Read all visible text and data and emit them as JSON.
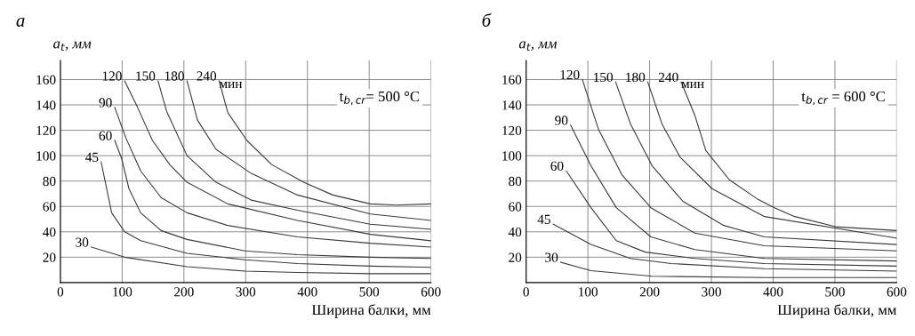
{
  "chart_data": [
    {
      "type": "line",
      "title": "а",
      "xlabel": "Ширина балки, мм",
      "ylabel": "a$_{t}$, мм",
      "xlim": [
        0,
        600
      ],
      "ylim": [
        0,
        175
      ],
      "xticks": [
        0,
        100,
        200,
        300,
        400,
        500,
        600
      ],
      "yticks": [
        20,
        40,
        60,
        80,
        100,
        120,
        140,
        160
      ],
      "grid": true,
      "legend": false,
      "annotations": [
        "t$_{b,cr}$= 500 °C",
        {
          "text": "мин",
          "x": 257,
          "y": 151
        }
      ],
      "series": [
        {
          "name": "30",
          "color": "#3a3a3a",
          "x": [
            50,
            104,
            205,
            299,
            384,
            502,
            600
          ],
          "values": [
            28,
            20,
            12.5,
            9,
            8,
            7,
            7
          ]
        },
        {
          "name": "45",
          "color": "#3a3a3a",
          "x": [
            66,
            83,
            104,
            130,
            205,
            299,
            384,
            502,
            600
          ],
          "values": [
            95,
            55,
            40,
            33,
            23,
            18,
            15,
            13,
            12
          ]
        },
        {
          "name": "60",
          "color": "#3a3a3a",
          "x": [
            88,
            99,
            111,
            130,
            163,
            205,
            299,
            384,
            502,
            600
          ],
          "values": [
            112,
            98,
            74,
            55,
            41,
            34,
            25,
            22,
            20,
            19
          ]
        },
        {
          "name": "90",
          "color": "#3a3a3a",
          "x": [
            88,
            106,
            130,
            163,
            205,
            271,
            384,
            502,
            600
          ],
          "values": [
            138,
            114,
            88,
            67,
            55,
            45,
            36,
            31,
            28
          ]
        },
        {
          "name": "120",
          "color": "#3a3a3a",
          "x": [
            104,
            125,
            149,
            177,
            205,
            271,
            384,
            502,
            600
          ],
          "values": [
            159,
            138,
            112,
            93,
            79,
            62,
            49,
            38,
            33
          ]
        },
        {
          "name": "150",
          "color": "#3a3a3a",
          "x": [
            158,
            172,
            205,
            252,
            309,
            384,
            502,
            600
          ],
          "values": [
            159,
            135,
            100,
            79,
            65,
            57,
            46,
            42
          ]
        },
        {
          "name": "180",
          "color": "#3a3a3a",
          "x": [
            205,
            222,
            252,
            309,
            384,
            502,
            600
          ],
          "values": [
            159,
            128,
            105,
            86,
            69,
            54,
            49
          ]
        },
        {
          "name": "240",
          "color": "#3a3a3a",
          "x": [
            257,
            271,
            302,
            342,
            394,
            441,
            502,
            544,
            600
          ],
          "values": [
            159,
            134,
            112,
            93,
            79,
            69,
            62,
            61,
            62
          ]
        }
      ]
    },
    {
      "type": "line",
      "title": "б",
      "xlabel": "Ширина балки, мм",
      "ylabel": "a$_{t}$, мм",
      "xlim": [
        0,
        600
      ],
      "ylim": [
        0,
        175
      ],
      "xticks": [
        0,
        100,
        200,
        300,
        400,
        500,
        600
      ],
      "yticks": [
        20,
        40,
        60,
        80,
        100,
        120,
        140,
        160
      ],
      "grid": true,
      "legend": false,
      "annotations": [
        "t$_{b,cr}$ = 600 °C",
        {
          "text": "мин",
          "x": 251,
          "y": 151
        }
      ],
      "series": [
        {
          "name": "30",
          "color": "#3a3a3a",
          "x": [
            56,
            105,
            204,
            386,
            600
          ],
          "values": [
            16,
            9.4,
            5,
            4,
            4
          ]
        },
        {
          "name": "45",
          "color": "#3a3a3a",
          "x": [
            44,
            105,
            169,
            235,
            386,
            600
          ],
          "values": [
            46,
            30,
            19,
            15,
            11,
            9
          ]
        },
        {
          "name": "60",
          "color": "#3a3a3a",
          "x": [
            65,
            105,
            146,
            193,
            273,
            386,
            600
          ],
          "values": [
            88,
            59,
            33,
            24,
            19,
            15,
            13
          ]
        },
        {
          "name": "90",
          "color": "#3a3a3a",
          "x": [
            72,
            105,
            146,
            202,
            273,
            386,
            600
          ],
          "values": [
            124,
            92,
            59,
            36,
            26,
            19,
            17
          ]
        },
        {
          "name": "120",
          "color": "#3a3a3a",
          "x": [
            91,
            117,
            155,
            202,
            273,
            386,
            600
          ],
          "values": [
            160,
            121,
            85,
            59,
            39,
            29,
            25
          ]
        },
        {
          "name": "150",
          "color": "#3a3a3a",
          "x": [
            145,
            169,
            204,
            254,
            320,
            386,
            600
          ],
          "values": [
            158,
            125,
            92,
            64,
            45,
            36,
            30
          ]
        },
        {
          "name": "180",
          "color": "#3a3a3a",
          "x": [
            197,
            220,
            249,
            301,
            386,
            600
          ],
          "values": [
            158,
            125,
            99,
            74,
            52,
            35
          ]
        },
        {
          "name": "240",
          "color": "#3a3a3a",
          "x": [
            251,
            273,
            291,
            329,
            374,
            402,
            435,
            501,
            600
          ],
          "values": [
            158,
            132,
            104,
            81,
            66,
            59,
            52,
            44,
            41
          ]
        }
      ]
    }
  ]
}
